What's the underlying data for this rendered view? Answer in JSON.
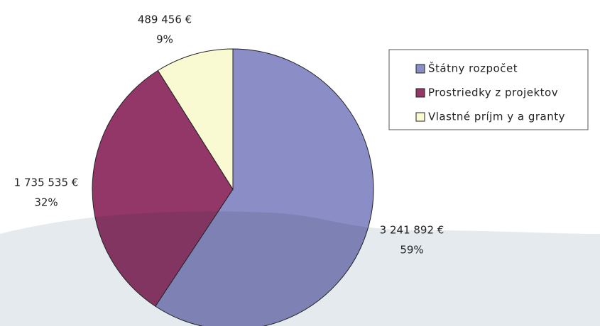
{
  "chart_data": {
    "type": "pie",
    "categories": [
      "Štátny rozpočet",
      "Prostriedky z projektov",
      "Vlastné príjm y a granty"
    ],
    "values": [
      3241892,
      1735535,
      489456
    ],
    "value_labels": [
      "3 241 892 €",
      "1 735 535 €",
      "489 456 €"
    ],
    "percent_labels": [
      "59%",
      "32%",
      "9%"
    ],
    "colors": [
      "#8b8ec6",
      "#923767",
      "#fafad2"
    ],
    "legend": "upper right"
  }
}
